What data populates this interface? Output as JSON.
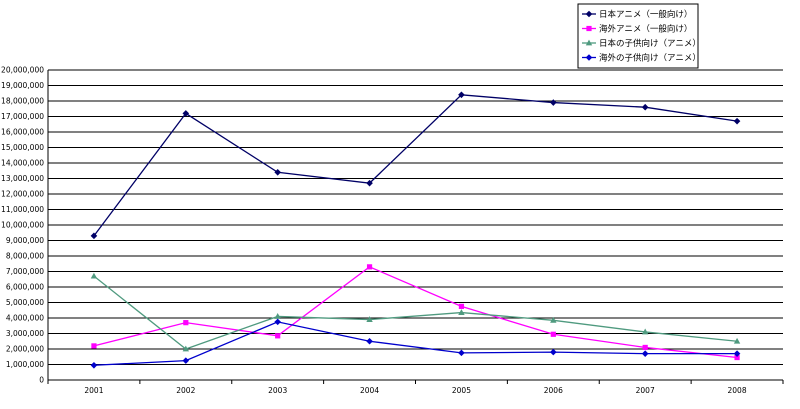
{
  "chart_data": {
    "type": "line",
    "categories": [
      "2001",
      "2002",
      "2003",
      "2004",
      "2005",
      "2006",
      "2007",
      "2008"
    ],
    "ylim": [
      0,
      20000000
    ],
    "ytick_step": 1000000,
    "ytick_labels": [
      "0",
      "1,000,000",
      "2,000,000",
      "3,000,000",
      "4,000,000",
      "5,000,000",
      "6,000,000",
      "7,000,000",
      "8,000,000",
      "9,000,000",
      "10,000,000",
      "11,000,000",
      "12,000,000",
      "13,000,000",
      "14,000,000",
      "15,000,000",
      "16,000,000",
      "17,000,000",
      "18,000,000",
      "19,000,000",
      "20,000,000"
    ],
    "grid": true,
    "legend_position": "top-right",
    "series": [
      {
        "name": "日本アニメ（一般向け）",
        "color": "#000066",
        "marker": "diamond",
        "values": [
          9300000,
          17200000,
          13400000,
          12700000,
          18400000,
          17900000,
          17600000,
          16700000
        ]
      },
      {
        "name": "海外アニメ（一般向け）",
        "color": "#ff00ff",
        "marker": "square",
        "values": [
          2200000,
          3700000,
          2850000,
          7300000,
          4750000,
          2950000,
          2100000,
          1450000
        ]
      },
      {
        "name": "日本の子供向け（アニメ）",
        "color": "#4f9a7f",
        "marker": "triangle",
        "values": [
          6700000,
          2000000,
          4100000,
          3900000,
          4350000,
          3850000,
          3100000,
          2500000
        ]
      },
      {
        "name": "海外の子供向け（アニメ）",
        "color": "#0000cc",
        "marker": "diamond",
        "values": [
          950000,
          1250000,
          3750000,
          2500000,
          1750000,
          1800000,
          1700000,
          1700000
        ]
      }
    ]
  }
}
